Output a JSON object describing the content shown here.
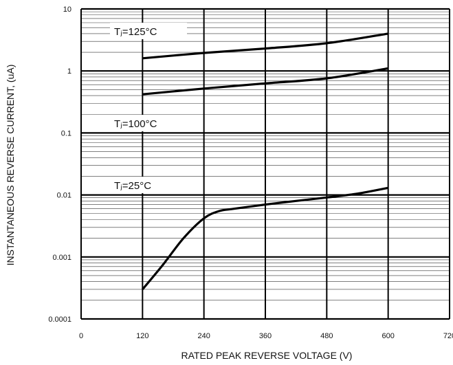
{
  "chart_data": {
    "type": "line",
    "title": "",
    "xlabel": "RATED PEAK REVERSE VOLTAGE (V)",
    "ylabel": "INSTANTANEOUS REVERSE CURRENT, (uA)",
    "xlim": [
      0,
      720
    ],
    "ylim": [
      0.0001,
      10
    ],
    "yscale": "log",
    "grid": true,
    "x_ticks": [
      "0",
      "120",
      "240",
      "360",
      "480",
      "600",
      "720"
    ],
    "y_ticks": [
      "0.0001",
      "0.001",
      "0.01",
      "0.1",
      "1",
      "10"
    ],
    "series": [
      {
        "name": "Tⱼ=125°C",
        "x": [
          120,
          240,
          360,
          480,
          600
        ],
        "y": [
          1.6,
          1.95,
          2.3,
          2.8,
          4.0
        ]
      },
      {
        "name": "Tⱼ=100°C",
        "x": [
          120,
          240,
          360,
          480,
          600
        ],
        "y": [
          0.42,
          0.52,
          0.63,
          0.76,
          1.1
        ]
      },
      {
        "name": "Tⱼ=25°C",
        "x": [
          120,
          160,
          200,
          240,
          270,
          300,
          360,
          420,
          480,
          540,
          600
        ],
        "y": [
          0.0003,
          0.00075,
          0.002,
          0.0042,
          0.0055,
          0.006,
          0.007,
          0.008,
          0.0091,
          0.0105,
          0.013
        ]
      }
    ]
  }
}
